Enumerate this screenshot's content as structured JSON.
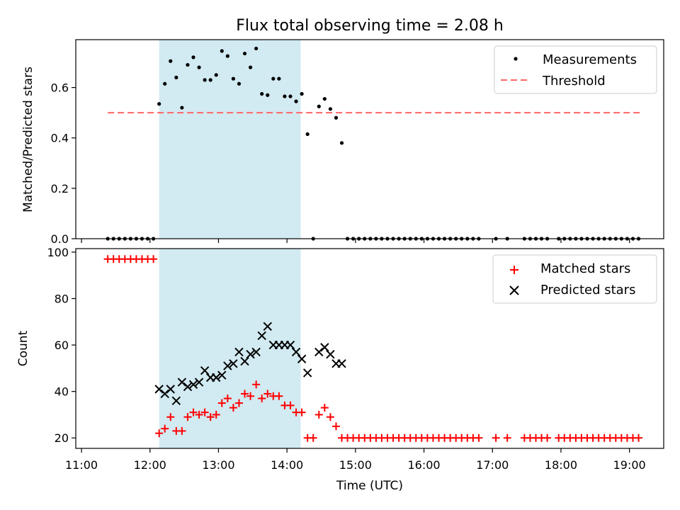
{
  "figure": {
    "title": "Flux total observing time = 2.08 h",
    "xlabel": "Time (UTC)"
  },
  "chart_data": [
    {
      "type": "scatter",
      "ylabel": "Matched/Predicted stars",
      "ylim": [
        0.0,
        0.79
      ],
      "yticks": [
        "0.0",
        "0.2",
        "0.4",
        "0.6"
      ],
      "xlim": [
        "10:55",
        "19:30"
      ],
      "shaded_interval": [
        "12:08",
        "14:12"
      ],
      "shade_color": "#add8e6",
      "grid": false,
      "legend_placement": "top-right",
      "threshold": {
        "name": "Threshold",
        "value": 0.5,
        "x_range": [
          "11:23",
          "19:10"
        ],
        "color": "#ff6666"
      },
      "series": [
        {
          "name": "Measurements",
          "marker": "dot",
          "color": "#000000",
          "x": [
            "11:23",
            "11:28",
            "11:33",
            "11:38",
            "11:43",
            "11:48",
            "11:53",
            "11:58",
            "12:03",
            "12:08",
            "12:13",
            "12:18",
            "12:23",
            "12:28",
            "12:33",
            "12:38",
            "12:43",
            "12:48",
            "12:53",
            "12:58",
            "13:03",
            "13:08",
            "13:13",
            "13:18",
            "13:23",
            "13:28",
            "13:33",
            "13:38",
            "13:43",
            "13:48",
            "13:53",
            "13:58",
            "14:03",
            "14:08",
            "14:13",
            "14:18",
            "14:23",
            "14:28",
            "14:33",
            "14:38",
            "14:43",
            "14:48",
            "14:53",
            "14:58",
            "15:03",
            "15:08",
            "15:13",
            "15:18",
            "15:23",
            "15:28",
            "15:33",
            "15:38",
            "15:43",
            "15:48",
            "15:53",
            "15:58",
            "16:03",
            "16:08",
            "16:13",
            "16:18",
            "16:23",
            "16:28",
            "16:33",
            "16:38",
            "16:43",
            "16:48",
            "17:03",
            "17:13",
            "17:28",
            "17:33",
            "17:38",
            "17:43",
            "17:48",
            "17:58",
            "18:03",
            "18:08",
            "18:13",
            "18:18",
            "18:23",
            "18:28",
            "18:33",
            "18:38",
            "18:43",
            "18:48",
            "18:53",
            "18:58",
            "19:03",
            "19:08"
          ],
          "y": [
            0,
            0,
            0,
            0,
            0,
            0,
            0,
            0,
            0,
            0.535,
            0.615,
            0.705,
            0.64,
            0.52,
            0.69,
            0.72,
            0.68,
            0.63,
            0.63,
            0.65,
            0.745,
            0.725,
            0.635,
            0.615,
            0.735,
            0.68,
            0.755,
            0.575,
            0.57,
            0.635,
            0.635,
            0.565,
            0.565,
            0.545,
            0.575,
            0.415,
            0,
            0.525,
            0.555,
            0.515,
            0.48,
            0.38,
            0,
            0,
            0,
            0,
            0,
            0,
            0,
            0,
            0,
            0,
            0,
            0,
            0,
            0,
            0,
            0,
            0,
            0,
            0,
            0,
            0,
            0,
            0,
            0,
            0,
            0,
            0,
            0,
            0,
            0,
            0,
            0,
            0,
            0,
            0,
            0,
            0,
            0,
            0,
            0,
            0,
            0,
            0,
            0,
            0,
            0
          ]
        }
      ]
    },
    {
      "type": "scatter",
      "ylabel": "Count",
      "ylim": [
        15.5,
        101.5
      ],
      "yticks": [
        "20",
        "40",
        "60",
        "80",
        "100"
      ],
      "xlim": [
        "10:55",
        "19:30"
      ],
      "xticks": [
        "11:00",
        "12:00",
        "13:00",
        "14:00",
        "15:00",
        "16:00",
        "17:00",
        "18:00",
        "19:00"
      ],
      "shaded_interval": [
        "12:08",
        "14:12"
      ],
      "shade_color": "#add8e6",
      "grid": false,
      "legend_placement": "top-right",
      "series": [
        {
          "name": "Matched stars",
          "marker": "plus",
          "color": "#ff0000",
          "x": [
            "11:23",
            "11:28",
            "11:33",
            "11:38",
            "11:43",
            "11:48",
            "11:53",
            "11:58",
            "12:03",
            "12:08",
            "12:13",
            "12:18",
            "12:23",
            "12:28",
            "12:33",
            "12:38",
            "12:43",
            "12:48",
            "12:53",
            "12:58",
            "13:03",
            "13:08",
            "13:13",
            "13:18",
            "13:23",
            "13:28",
            "13:33",
            "13:38",
            "13:43",
            "13:48",
            "13:53",
            "13:58",
            "14:03",
            "14:08",
            "14:13",
            "14:18",
            "14:23",
            "14:28",
            "14:33",
            "14:38",
            "14:43",
            "14:48",
            "14:53",
            "14:58",
            "15:03",
            "15:08",
            "15:13",
            "15:18",
            "15:23",
            "15:28",
            "15:33",
            "15:38",
            "15:43",
            "15:48",
            "15:53",
            "15:58",
            "16:03",
            "16:08",
            "16:13",
            "16:18",
            "16:23",
            "16:28",
            "16:33",
            "16:38",
            "16:43",
            "16:48",
            "17:03",
            "17:13",
            "17:28",
            "17:33",
            "17:38",
            "17:43",
            "17:48",
            "17:58",
            "18:03",
            "18:08",
            "18:13",
            "18:18",
            "18:23",
            "18:28",
            "18:33",
            "18:38",
            "18:43",
            "18:48",
            "18:53",
            "18:58",
            "19:03",
            "19:08"
          ],
          "y": [
            97,
            97,
            97,
            97,
            97,
            97,
            97,
            97,
            97,
            22,
            24,
            29,
            23,
            23,
            29,
            31,
            30,
            31,
            29,
            30,
            35,
            37,
            33,
            35,
            39,
            38,
            43,
            37,
            39,
            38,
            38,
            34,
            34,
            31,
            31,
            20,
            20,
            30,
            33,
            29,
            25,
            20,
            20,
            20,
            20,
            20,
            20,
            20,
            20,
            20,
            20,
            20,
            20,
            20,
            20,
            20,
            20,
            20,
            20,
            20,
            20,
            20,
            20,
            20,
            20,
            20,
            20,
            20,
            20,
            20,
            20,
            20,
            20,
            20,
            20,
            20,
            20,
            20,
            20,
            20,
            20,
            20,
            20,
            20,
            20,
            20,
            20,
            20
          ]
        },
        {
          "name": "Predicted stars",
          "marker": "x",
          "color": "#000000",
          "x": [
            "12:08",
            "12:13",
            "12:18",
            "12:23",
            "12:28",
            "12:33",
            "12:38",
            "12:43",
            "12:48",
            "12:53",
            "12:58",
            "13:03",
            "13:08",
            "13:13",
            "13:18",
            "13:23",
            "13:28",
            "13:33",
            "13:38",
            "13:43",
            "13:48",
            "13:53",
            "13:58",
            "14:03",
            "14:08",
            "14:13",
            "14:18",
            "14:28",
            "14:33",
            "14:38",
            "14:43",
            "14:48"
          ],
          "y": [
            41,
            39,
            41,
            36,
            44,
            42,
            43,
            44,
            49,
            46,
            46,
            47,
            51,
            52,
            57,
            53,
            56,
            57,
            64,
            68,
            60,
            60,
            60,
            60,
            57,
            54,
            48,
            57,
            59,
            56,
            52,
            52
          ]
        }
      ]
    }
  ]
}
